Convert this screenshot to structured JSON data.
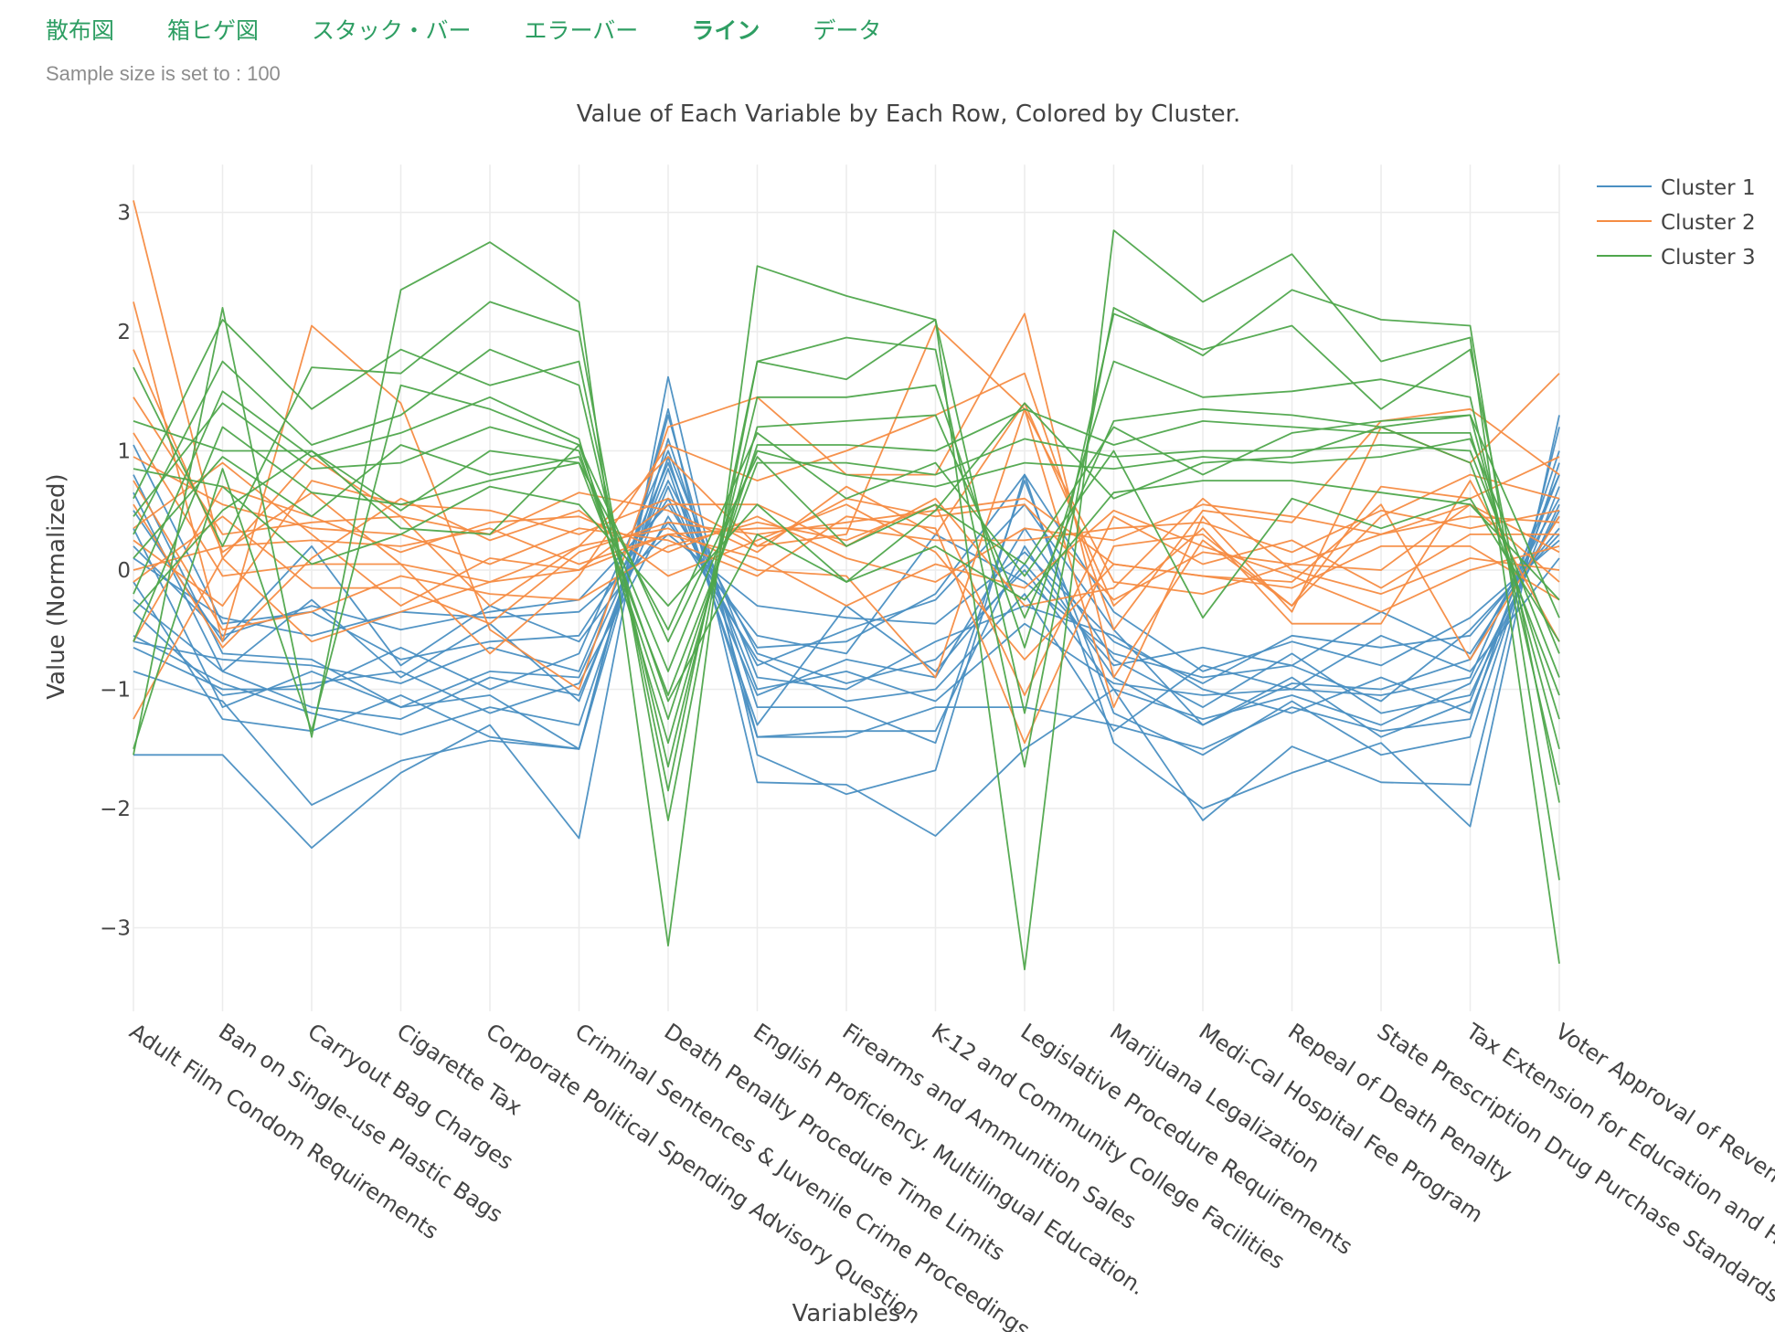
{
  "tabs": [
    {
      "label": "散布図",
      "active": false
    },
    {
      "label": "箱ヒゲ図",
      "active": false
    },
    {
      "label": "スタック・バー",
      "active": false
    },
    {
      "label": "エラーバー",
      "active": false
    },
    {
      "label": "ライン",
      "active": true
    },
    {
      "label": "データ",
      "active": false
    }
  ],
  "sample_note": "Sample size is set to : 100",
  "colors": {
    "tab_green": "#2e9e63",
    "cluster_1": "#4a8fc2",
    "cluster_2": "#f58c43",
    "cluster_3": "#4fa64c"
  },
  "chart_data": {
    "type": "line",
    "title": "Value of Each Variable by Each Row, Colored by Cluster.",
    "xlabel": "Variables",
    "ylabel": "Value (Normalized)",
    "ylim": [
      -3.7,
      3.4
    ],
    "yticks": [
      3,
      2,
      1,
      0,
      -1,
      -2,
      -3
    ],
    "ytick_labels": [
      "3",
      "2",
      "1",
      "0",
      "−1",
      "−2",
      "−3"
    ],
    "grid": true,
    "legend_position": "top-right",
    "categories": [
      "Adult Film Condom Requirements",
      "Ban on Single-use Plastic Bags",
      "Carryout Bag Charges",
      "Cigarette Tax",
      "Corporate Political Spending Advisory Question",
      "Criminal Sentences & Juvenile Crime Proceedings",
      "Death Penalty Procedure Time Limits",
      "English Proficiency. Multilingual Education.",
      "Firearms and Ammunition Sales",
      "K-12 and Community College Facilities",
      "Legislative Procedure Requirements",
      "Marijuana Legalization",
      "Medi-Cal Hospital Fee Program",
      "Repeal of Death Penalty",
      "State Prescription Drug Purchase Standards",
      "Tax Extension for Education and Healthcare",
      "Voter Approval of Revenue Bonds"
    ],
    "series": [
      {
        "name": "Cluster 1",
        "color": "#4a8fc2",
        "rows": [
          [
            -1.55,
            -1.55,
            -2.33,
            -1.7,
            -1.3,
            -2.25,
            1.62,
            -1.55,
            -1.88,
            -1.68,
            0.8,
            -1.45,
            -2.0,
            -1.7,
            -1.45,
            -2.15,
            1.3
          ],
          [
            -0.85,
            -1.1,
            -1.97,
            -1.6,
            -1.43,
            -1.5,
            1.35,
            -1.78,
            -1.8,
            -2.23,
            -1.5,
            -1.0,
            -2.1,
            -1.48,
            -1.78,
            -1.8,
            1.2
          ],
          [
            0.35,
            -1.15,
            -0.85,
            -1.15,
            -1.05,
            -1.5,
            1.1,
            -1.15,
            -1.15,
            -1.45,
            0.75,
            -1.2,
            -1.55,
            -1.1,
            -1.55,
            -1.4,
            0.9
          ],
          [
            -0.55,
            -0.95,
            -1.2,
            -1.38,
            -1.15,
            -1.3,
            0.95,
            -1.4,
            -1.35,
            -1.35,
            0.2,
            -0.9,
            -1.3,
            -0.9,
            -1.4,
            -1.1,
            0.8
          ],
          [
            0.8,
            -0.7,
            -0.75,
            -1.15,
            -0.85,
            -0.9,
            0.75,
            -0.7,
            -0.95,
            -0.75,
            0.0,
            -1.0,
            -1.25,
            -1.05,
            -1.3,
            -0.95,
            0.5
          ],
          [
            1.05,
            -0.45,
            -0.35,
            -0.75,
            -0.6,
            -0.55,
            0.6,
            -0.8,
            -0.5,
            -0.25,
            0.55,
            -0.5,
            -1.3,
            -0.95,
            -1.0,
            -0.75,
            0.6
          ],
          [
            0.2,
            -0.55,
            -0.3,
            -0.5,
            -0.35,
            -0.25,
            0.55,
            -0.65,
            -0.6,
            -0.2,
            0.8,
            -0.35,
            -0.85,
            -0.6,
            -0.8,
            -0.4,
            0.25
          ],
          [
            -0.25,
            -0.85,
            -0.25,
            -0.9,
            -0.45,
            -1.1,
            0.85,
            -1.3,
            -0.3,
            -0.85,
            0.05,
            -0.8,
            -0.65,
            -0.8,
            -0.35,
            -0.7,
            0.45
          ],
          [
            -0.65,
            -1.0,
            -1.0,
            -0.65,
            -1.0,
            -0.7,
            1.0,
            -0.9,
            -1.0,
            -0.6,
            -0.3,
            -0.55,
            -1.0,
            -1.2,
            -0.9,
            -1.2,
            0.7
          ],
          [
            0.5,
            -0.6,
            0.2,
            -0.8,
            -0.3,
            -0.6,
            0.4,
            -0.55,
            -0.7,
            0.3,
            -0.1,
            -0.7,
            -0.9,
            -0.8,
            -1.1,
            -0.5,
            0.3
          ],
          [
            -0.1,
            -1.25,
            -1.35,
            -1.05,
            -1.4,
            -1.5,
            1.3,
            -1.4,
            -1.4,
            -1.15,
            -1.15,
            -1.3,
            -1.5,
            -1.15,
            -1.35,
            -1.25,
            1.0
          ],
          [
            0.65,
            -0.85,
            -1.15,
            -1.25,
            -0.9,
            -1.05,
            0.7,
            -1.05,
            -0.75,
            -0.9,
            0.35,
            -0.75,
            -1.15,
            -0.7,
            -1.2,
            -1.05,
            0.55
          ],
          [
            -0.35,
            -1.05,
            -0.95,
            -0.85,
            -1.2,
            -0.95,
            0.45,
            -0.75,
            -1.1,
            -1.0,
            -0.2,
            -1.35,
            -0.8,
            -1.0,
            -0.55,
            -0.85,
            0.1
          ],
          [
            0.1,
            -0.4,
            -0.55,
            -0.35,
            -0.4,
            -0.35,
            0.3,
            -0.3,
            -0.4,
            -0.45,
            0.15,
            -0.6,
            -0.95,
            -0.55,
            -0.65,
            -0.55,
            0.35
          ],
          [
            -0.6,
            -0.75,
            -0.8,
            -0.95,
            -0.65,
            -0.85,
            0.9,
            -1.0,
            -0.85,
            -1.1,
            -0.45,
            -0.95,
            -1.05,
            -1.0,
            -1.05,
            -0.9,
            0.8
          ]
        ]
      },
      {
        "name": "Cluster 2",
        "color": "#f58c43",
        "rows": [
          [
            3.1,
            0.1,
            0.95,
            0.45,
            -0.3,
            0.2,
            0.95,
            0.2,
            0.3,
            2.05,
            1.35,
            -1.15,
            0.45,
            -0.35,
            1.2,
            0.9,
            1.65
          ],
          [
            2.25,
            -0.6,
            2.05,
            1.4,
            -0.5,
            -1.0,
            1.2,
            1.45,
            0.8,
            0.8,
            2.15,
            -0.9,
            0.25,
            -0.3,
            0.7,
            0.6,
            0.95
          ],
          [
            1.85,
            0.15,
            0.65,
            0.05,
            -0.7,
            -0.05,
            1.05,
            0.75,
            1.0,
            1.3,
            1.65,
            -0.5,
            0.5,
            0.4,
            1.25,
            1.35,
            0.8
          ],
          [
            1.45,
            0.3,
            0.4,
            0.45,
            0.3,
            0.65,
            0.5,
            0.15,
            0.7,
            0.3,
            1.4,
            -0.3,
            0.35,
            -0.45,
            -0.45,
            0.75,
            -0.6
          ],
          [
            1.15,
            -0.05,
            0.05,
            0.05,
            -0.1,
            0.2,
            0.35,
            0.0,
            -0.05,
            -0.9,
            1.35,
            -0.1,
            -0.2,
            0.05,
            0.3,
            0.55,
            -0.1
          ],
          [
            0.95,
            0.55,
            0.35,
            0.3,
            0.05,
            0.35,
            0.25,
            -0.05,
            0.45,
            0.35,
            -1.45,
            0.2,
            0.3,
            -0.3,
            0.45,
            0.8,
            0.6
          ],
          [
            0.75,
            -0.5,
            -0.35,
            -0.05,
            -0.2,
            -0.25,
            0.2,
            0.4,
            0.25,
            0.55,
            -1.05,
            0.45,
            0.05,
            0.25,
            -0.15,
            0.3,
            0.3
          ],
          [
            0.55,
            -0.65,
            0.1,
            0.6,
            0.25,
            0.5,
            -0.05,
            0.25,
            0.55,
            0.15,
            -0.75,
            0.05,
            -0.05,
            -0.1,
            0.55,
            -0.75,
            0.45
          ],
          [
            0.35,
            0.9,
            0.3,
            -0.3,
            0.1,
            0.0,
            0.55,
            0.55,
            0.2,
            0.6,
            -0.3,
            -0.15,
            0.6,
            0.0,
            -0.2,
            0.1,
            0.0
          ],
          [
            0.25,
            -0.3,
            0.75,
            0.55,
            0.5,
            0.3,
            0.6,
            0.2,
            0.6,
            0.45,
            0.55,
            -0.25,
            0.15,
            0.05,
            0.0,
            0.55,
            0.15
          ],
          [
            -0.1,
            0.45,
            -0.15,
            -0.15,
            -0.45,
            0.15,
            0.4,
            0.3,
            0.4,
            0.5,
            0.6,
            0.05,
            -0.05,
            -0.15,
            0.2,
            0.2,
            -0.25
          ],
          [
            -0.6,
            0.7,
            0.45,
            0.15,
            0.4,
            0.45,
            0.15,
            0.45,
            0.1,
            -0.1,
            0.35,
            0.25,
            0.55,
            0.45,
            0.3,
            0.45,
            0.4
          ],
          [
            -1.25,
            0.1,
            -0.6,
            -0.35,
            -0.1,
            0.0,
            0.3,
            0.1,
            -0.3,
            0.05,
            -0.15,
            0.5,
            0.2,
            -0.05,
            -0.35,
            0.0,
            0.2
          ],
          [
            0.0,
            0.2,
            0.25,
            0.2,
            0.35,
            0.05,
            0.3,
            0.35,
            0.35,
            0.25,
            0.25,
            0.35,
            0.4,
            0.15,
            0.5,
            0.35,
            0.5
          ]
        ]
      },
      {
        "name": "Cluster 3",
        "color": "#4fa64c",
        "rows": [
          [
            -1.55,
            2.2,
            -1.4,
            2.35,
            2.75,
            2.25,
            -3.15,
            2.55,
            2.3,
            2.1,
            -3.35,
            2.85,
            2.25,
            2.65,
            1.75,
            1.95,
            -3.3
          ],
          [
            1.7,
            0.2,
            1.7,
            1.65,
            2.25,
            2.0,
            -2.1,
            1.75,
            1.95,
            1.85,
            -1.65,
            2.2,
            1.8,
            2.35,
            2.1,
            2.05,
            -2.6
          ],
          [
            0.6,
            2.1,
            1.35,
            1.85,
            1.55,
            1.75,
            -1.85,
            1.75,
            1.6,
            2.1,
            -1.2,
            2.15,
            1.85,
            2.05,
            1.35,
            1.85,
            -1.95
          ],
          [
            0.3,
            1.75,
            1.05,
            1.3,
            1.85,
            1.55,
            -1.65,
            1.45,
            1.45,
            1.55,
            -0.65,
            1.75,
            1.45,
            1.5,
            1.6,
            1.45,
            -1.8
          ],
          [
            -0.2,
            1.5,
            0.95,
            1.15,
            1.45,
            1.1,
            -1.45,
            1.2,
            1.25,
            1.3,
            -0.4,
            1.25,
            1.35,
            1.3,
            1.2,
            1.3,
            -1.5
          ],
          [
            0.45,
            1.4,
            0.85,
            0.9,
            1.2,
            1.0,
            -1.25,
            1.05,
            1.05,
            1.0,
            1.35,
            1.05,
            1.25,
            1.2,
            1.15,
            1.15,
            -1.25
          ],
          [
            -0.6,
            1.2,
            0.65,
            0.55,
            0.75,
            0.9,
            -1.05,
            0.9,
            0.9,
            0.8,
            1.1,
            0.95,
            1.0,
            1.0,
            1.05,
            1.0,
            -0.9
          ],
          [
            0.1,
            0.95,
            0.45,
            1.05,
            0.8,
            0.95,
            -0.85,
            1.0,
            0.8,
            0.7,
            0.9,
            0.85,
            0.95,
            0.9,
            0.95,
            1.1,
            -0.7
          ],
          [
            -0.35,
            0.5,
            1.0,
            0.35,
            0.3,
            1.05,
            -0.6,
            0.95,
            0.2,
            0.55,
            0.05,
            1.2,
            0.8,
            1.15,
            1.25,
            1.3,
            -0.4
          ],
          [
            0.85,
            0.7,
            0.05,
            0.3,
            0.7,
            0.55,
            -0.3,
            0.55,
            -0.1,
            0.2,
            -0.25,
            0.65,
            0.75,
            0.75,
            0.65,
            0.55,
            -0.25
          ],
          [
            1.25,
            1.0,
            1.0,
            0.5,
            1.0,
            0.9,
            -0.5,
            1.15,
            0.6,
            0.9,
            -0.05,
            1.0,
            -0.4,
            0.6,
            0.35,
            0.6,
            -0.6
          ],
          [
            -1.5,
            0.85,
            -1.35,
            1.55,
            1.35,
            1.05,
            -1.1,
            0.3,
            -0.1,
            0.5,
            1.4,
            0.6,
            0.9,
            0.95,
            1.2,
            0.9,
            -1.05
          ]
        ]
      }
    ]
  }
}
